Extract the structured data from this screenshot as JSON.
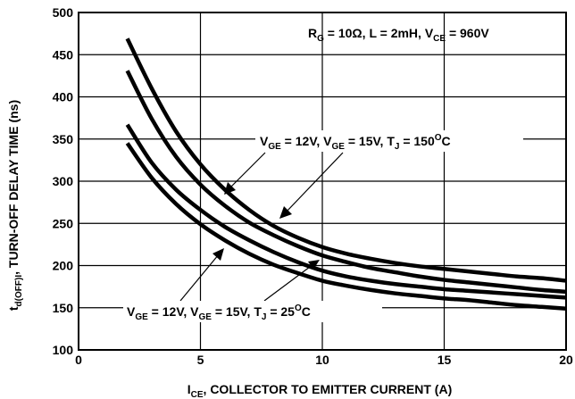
{
  "chart_data": {
    "type": "line",
    "title": "",
    "xlabel": {
      "sub_main": "I",
      "sub": "CE",
      "rest": ", COLLECTOR TO EMITTER CURRENT (A)"
    },
    "ylabel": {
      "main": "t",
      "sub": "d(OFF)I",
      "rest": ", TURN-OFF DELAY TIME  (ns)"
    },
    "xlim": [
      0,
      20
    ],
    "ylim": [
      100,
      500
    ],
    "x_ticks": [
      0,
      5,
      10,
      15,
      20
    ],
    "y_ticks": [
      100,
      150,
      200,
      250,
      300,
      350,
      400,
      450,
      500
    ],
    "grid": true,
    "series": [
      {
        "name": "VGE = 15V, TJ = 150°C",
        "x": [
          2,
          3,
          4,
          5,
          6,
          7,
          8,
          9,
          10,
          11,
          12,
          13,
          14,
          15,
          16,
          17,
          18,
          19,
          20
        ],
        "y": [
          469,
          410,
          359,
          320,
          290,
          266,
          247,
          233,
          222,
          214,
          208,
          203,
          199,
          196,
          193,
          190,
          187,
          185,
          182
        ]
      },
      {
        "name": "VGE = 12V, TJ = 150°C",
        "x": [
          2,
          3,
          4,
          5,
          6,
          7,
          8,
          9,
          10,
          11,
          12,
          13,
          14,
          15,
          16,
          17,
          18,
          19,
          20
        ],
        "y": [
          431,
          374,
          329,
          296,
          271,
          251,
          236,
          223,
          212,
          204,
          197,
          192,
          187,
          183,
          180,
          177,
          174,
          171,
          169
        ]
      },
      {
        "name": "VGE = 15V, TJ = 25°C",
        "x": [
          2,
          3,
          4,
          5,
          6,
          7,
          8,
          9,
          10,
          11,
          12,
          13,
          14,
          15,
          16,
          17,
          18,
          19,
          20
        ],
        "y": [
          367,
          322,
          290,
          266,
          246,
          230,
          216,
          204,
          194,
          187,
          182,
          178,
          175,
          172,
          170,
          168,
          166,
          164,
          162
        ]
      },
      {
        "name": "VGE = 12V, TJ = 25°C",
        "x": [
          2,
          3,
          4,
          5,
          6,
          7,
          8,
          9,
          10,
          11,
          12,
          13,
          14,
          15,
          16,
          17,
          18,
          19,
          20
        ],
        "y": [
          345,
          304,
          273,
          249,
          230,
          214,
          201,
          191,
          182,
          176,
          171,
          167,
          164,
          161,
          159,
          156,
          153,
          151,
          149
        ]
      }
    ],
    "annotations": {
      "conditions": {
        "r": "R",
        "r_sub": "G",
        "text1": " = 10Ω, L = 2mH, V",
        "v_sub": "CE",
        "text2": " = 960V"
      },
      "hot_label": {
        "v1": "V",
        "s1": "GE",
        "t1": " = 12V, V",
        "s2": "GE",
        "t2": " = 15V, T",
        "s3": "J",
        "t3": " = 150",
        "sup": "O",
        "t4": "C"
      },
      "cold_label": {
        "v1": "V",
        "s1": "GE",
        "t1": " = 12V, V",
        "s2": "GE",
        "t2": " = 15V, T",
        "s3": "J",
        "t3": " = 25",
        "sup": "O",
        "t4": "C"
      }
    }
  }
}
